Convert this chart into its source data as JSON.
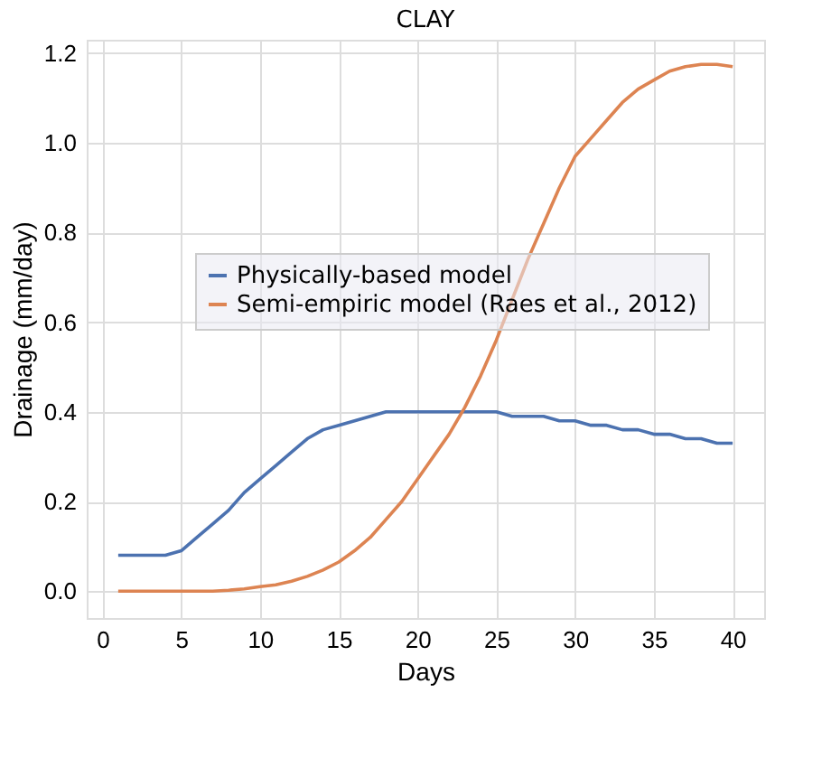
{
  "chart_data": {
    "type": "line",
    "title": "CLAY",
    "xlabel": "Days",
    "ylabel": "Drainage (mm/day)",
    "x": [
      1,
      2,
      3,
      4,
      5,
      6,
      7,
      8,
      9,
      10,
      11,
      12,
      13,
      14,
      15,
      16,
      17,
      18,
      19,
      20,
      21,
      22,
      23,
      24,
      25,
      26,
      27,
      28,
      29,
      30,
      31,
      32,
      33,
      34,
      35,
      36,
      37,
      38,
      39,
      40
    ],
    "series": [
      {
        "name": "Physically-based model",
        "color": "#4c72b0",
        "values": [
          0.08,
          0.08,
          0.08,
          0.08,
          0.09,
          0.12,
          0.15,
          0.18,
          0.22,
          0.25,
          0.28,
          0.31,
          0.34,
          0.36,
          0.37,
          0.38,
          0.39,
          0.4,
          0.4,
          0.4,
          0.4,
          0.4,
          0.4,
          0.4,
          0.4,
          0.39,
          0.39,
          0.39,
          0.38,
          0.38,
          0.37,
          0.37,
          0.36,
          0.36,
          0.35,
          0.35,
          0.34,
          0.34,
          0.33,
          0.33
        ]
      },
      {
        "name": "Semi-empiric model (Raes et al., 2012)",
        "color": "#dd8452",
        "values": [
          0,
          0,
          0,
          0,
          0,
          0,
          0,
          0.002,
          0.005,
          0.01,
          0.014,
          0.022,
          0.033,
          0.047,
          0.065,
          0.09,
          0.12,
          0.16,
          0.2,
          0.25,
          0.3,
          0.35,
          0.41,
          0.48,
          0.56,
          0.65,
          0.74,
          0.82,
          0.9,
          0.97,
          1.01,
          1.05,
          1.09,
          1.12,
          1.14,
          1.16,
          1.17,
          1.175,
          1.175,
          1.17
        ]
      }
    ],
    "xlim": [
      -1,
      42
    ],
    "xticks": [
      0,
      5,
      10,
      15,
      20,
      25,
      30,
      35,
      40
    ],
    "ylim": [
      -0.06,
      1.23
    ],
    "yticks": [
      {
        "value": 0,
        "label": "0.0"
      },
      0.2,
      0.4,
      0.6,
      0.8,
      {
        "value": 1,
        "label": "1.0"
      },
      1.2
    ],
    "grid": true,
    "legend": "right",
    "marker": "none",
    "line_style": "solid"
  }
}
